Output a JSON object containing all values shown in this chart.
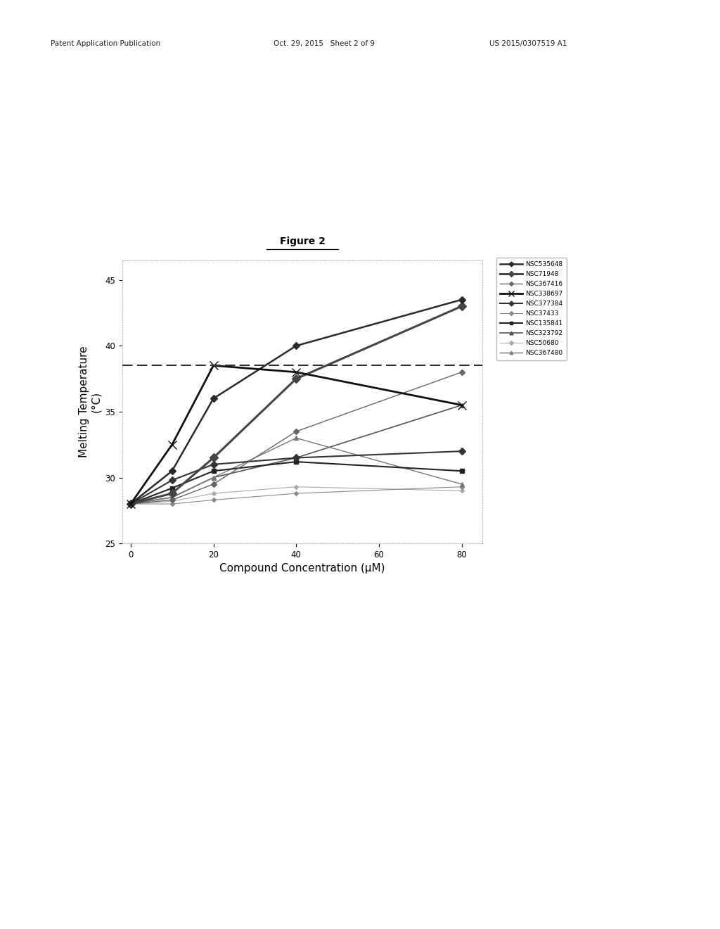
{
  "title": "Figure 2",
  "xlabel": "Compound Concentration (μM)",
  "ylabel": "Melting Temperature\n(°C)",
  "xlim": [
    -2,
    85
  ],
  "ylim": [
    25.0,
    46.5
  ],
  "xticks": [
    0,
    20,
    40,
    60,
    80
  ],
  "ytick_vals": [
    25.0,
    30.0,
    35.0,
    40.0,
    45.0
  ],
  "dashed_line_y": 38.5,
  "header_left": "Patent Application Publication",
  "header_mid": "Oct. 29, 2015   Sheet 2 of 9",
  "header_right": "US 2015/0307519 A1",
  "series": [
    {
      "name": "NSC535648",
      "x": [
        0,
        10,
        20,
        40,
        80
      ],
      "y": [
        28.0,
        30.5,
        36.0,
        40.0,
        43.5
      ],
      "color": "#2a2a2a",
      "marker": "D",
      "markersize": 5,
      "linewidth": 1.8,
      "linestyle": "-",
      "zorder": 10
    },
    {
      "name": "NSC71948",
      "x": [
        0,
        10,
        20,
        40,
        80
      ],
      "y": [
        28.0,
        28.8,
        31.5,
        37.5,
        43.0
      ],
      "color": "#444444",
      "marker": "D",
      "markersize": 6,
      "linewidth": 2.2,
      "linestyle": "-",
      "zorder": 9
    },
    {
      "name": "NSC367416",
      "x": [
        0,
        10,
        20,
        40,
        80
      ],
      "y": [
        28.0,
        28.3,
        29.5,
        33.5,
        38.0
      ],
      "color": "#666666",
      "marker": "D",
      "markersize": 4,
      "linewidth": 1.0,
      "linestyle": "-",
      "zorder": 8
    },
    {
      "name": "NSC338697",
      "x": [
        0,
        10,
        20,
        40,
        80
      ],
      "y": [
        28.0,
        32.5,
        38.5,
        38.0,
        35.5
      ],
      "color": "#111111",
      "marker": "x",
      "markersize": 8,
      "linewidth": 2.0,
      "linestyle": "-",
      "zorder": 11
    },
    {
      "name": "NSC377384",
      "x": [
        0,
        10,
        20,
        40,
        80
      ],
      "y": [
        28.0,
        29.8,
        31.0,
        31.5,
        32.0
      ],
      "color": "#333333",
      "marker": "D",
      "markersize": 5,
      "linewidth": 1.5,
      "linestyle": "-",
      "zorder": 7
    },
    {
      "name": "NSC37433",
      "x": [
        0,
        10,
        20,
        40,
        80
      ],
      "y": [
        28.0,
        28.0,
        28.3,
        28.8,
        29.3
      ],
      "color": "#888888",
      "marker": "D",
      "markersize": 3,
      "linewidth": 0.8,
      "linestyle": "-",
      "zorder": 4
    },
    {
      "name": "NSC135841",
      "x": [
        0,
        10,
        20,
        40,
        80
      ],
      "y": [
        28.0,
        29.2,
        30.5,
        31.2,
        30.5
      ],
      "color": "#222222",
      "marker": "s",
      "markersize": 5,
      "linewidth": 1.5,
      "linestyle": "-",
      "zorder": 6
    },
    {
      "name": "NSC323792",
      "x": [
        0,
        10,
        20,
        40,
        80
      ],
      "y": [
        28.0,
        28.5,
        30.0,
        31.5,
        35.5
      ],
      "color": "#555555",
      "marker": "^",
      "markersize": 5,
      "linewidth": 1.2,
      "linestyle": "-",
      "zorder": 5
    },
    {
      "name": "NSC50680",
      "x": [
        0,
        10,
        20,
        40,
        80
      ],
      "y": [
        28.0,
        28.2,
        28.8,
        29.3,
        29.0
      ],
      "color": "#aaaaaa",
      "marker": "D",
      "markersize": 3,
      "linewidth": 0.8,
      "linestyle": "-",
      "zorder": 3
    },
    {
      "name": "NSC367480",
      "x": [
        0,
        10,
        20,
        40,
        80
      ],
      "y": [
        28.0,
        28.5,
        30.0,
        33.0,
        29.5
      ],
      "color": "#777777",
      "marker": "^",
      "markersize": 4,
      "linewidth": 1.0,
      "linestyle": "-",
      "zorder": 5
    }
  ],
  "background_color": "#ffffff",
  "figure_title_fontsize": 10,
  "axis_label_fontsize": 11,
  "tick_fontsize": 8.5,
  "legend_fontsize": 6.5
}
